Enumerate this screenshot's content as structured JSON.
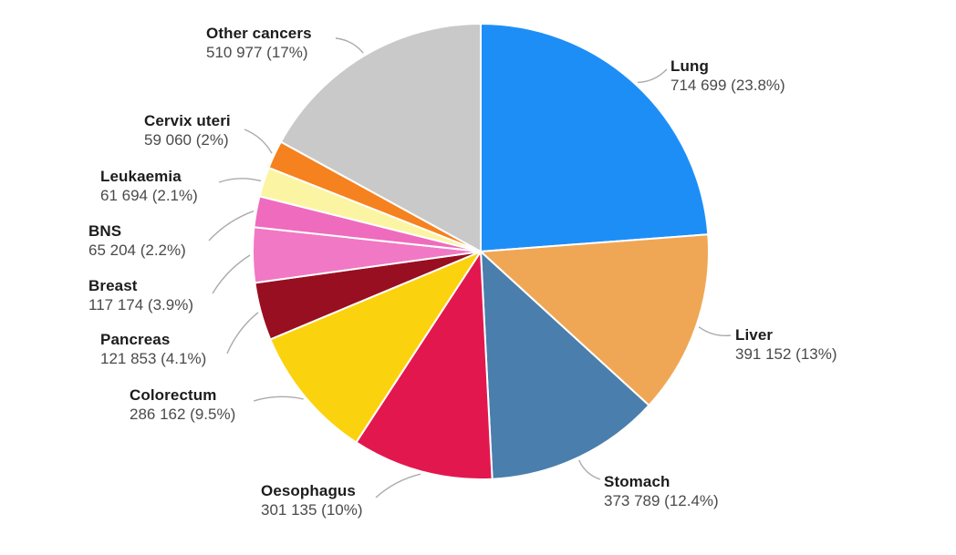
{
  "chart_data": {
    "type": "pie",
    "title": "",
    "legend": "none",
    "label_style": "outside-callout-labels-with-leader-lines",
    "start_angle_deg": -90,
    "direction": "clockwise",
    "center": [
      527,
      276
    ],
    "radius": 250,
    "slices": [
      {
        "label": "Lung",
        "value": 714699,
        "percent": 23.8,
        "value_text": "714 699 (23.8%)",
        "color": "#1E8EF7",
        "label_pos": [
          735,
          62
        ],
        "leader_end": [
          731,
          76
        ]
      },
      {
        "label": "Liver",
        "value": 391152,
        "percent": 13.0,
        "value_text": "391 152 (13%)",
        "color": "#EFA755",
        "label_pos": [
          806,
          357
        ],
        "leader_end": [
          801,
          368
        ]
      },
      {
        "label": "Stomach",
        "value": 373789,
        "percent": 12.4,
        "value_text": "373 789 (12.4%)",
        "color": "#4A7EAC",
        "label_pos": [
          662,
          518
        ],
        "leader_end": [
          658,
          526
        ]
      },
      {
        "label": "Oesophagus",
        "value": 301135,
        "percent": 10.0,
        "value_text": "301 135 (10%)",
        "color": "#E2174E",
        "label_pos": [
          286,
          528
        ],
        "leader_end": [
          412,
          546
        ]
      },
      {
        "label": "Colorectum",
        "value": 286162,
        "percent": 9.5,
        "value_text": "286 162 (9.5%)",
        "color": "#FBD20E",
        "label_pos": [
          142,
          423
        ],
        "leader_end": [
          278,
          440
        ]
      },
      {
        "label": "Pancreas",
        "value": 121853,
        "percent": 4.1,
        "value_text": "121 853 (4.1%)",
        "color": "#970F20",
        "label_pos": [
          110,
          362
        ],
        "leader_end": [
          249,
          388
        ]
      },
      {
        "label": "Breast",
        "value": 117174,
        "percent": 3.9,
        "value_text": "117 174 (3.9%)",
        "color": "#F178C4",
        "label_pos": [
          97,
          303
        ],
        "leader_end": [
          233,
          322
        ]
      },
      {
        "label": "BNS",
        "value": 65204,
        "percent": 2.2,
        "value_text": "65 204 (2.2%)",
        "color": "#EF6BBD",
        "label_pos": [
          97,
          243
        ],
        "leader_end": [
          229,
          264
        ]
      },
      {
        "label": "Leukaemia",
        "value": 61694,
        "percent": 2.1,
        "value_text": "61 694 (2.1%)",
        "color": "#FBF5A3",
        "label_pos": [
          110,
          183
        ],
        "leader_end": [
          240,
          200
        ]
      },
      {
        "label": "Cervix uteri",
        "value": 59060,
        "percent": 2.0,
        "value_text": "59 060 (2%)",
        "color": "#F5821F",
        "label_pos": [
          158,
          122
        ],
        "leader_end": [
          268,
          142
        ]
      },
      {
        "label": "Other cancers",
        "value": 510977,
        "percent": 17.0,
        "value_text": "510 977 (17%)",
        "color": "#C9C9C9",
        "label_pos": [
          226,
          26
        ],
        "leader_end": [
          368,
          42
        ]
      }
    ]
  },
  "colors": {
    "background": "#FFFFFF",
    "label_name_text": "#1C1C1C",
    "label_value_text": "#4A4A4A",
    "leader_line": "#ABABAB",
    "slice_gap": "#FFFFFF"
  }
}
